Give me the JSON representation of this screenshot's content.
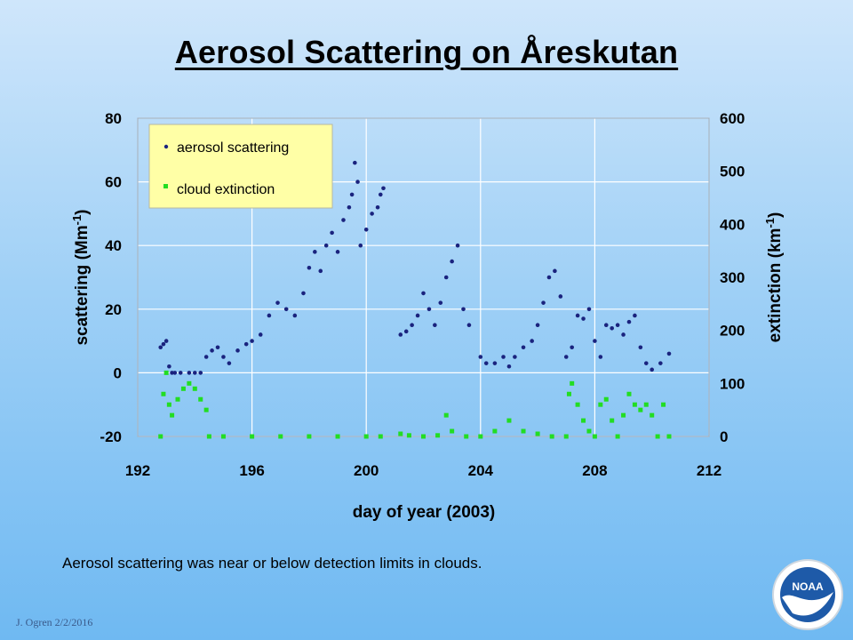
{
  "slide": {
    "title": "Aerosol Scattering on Åreskutan",
    "caption": "Aerosol scattering was near or below detection limits in clouds.",
    "footer": "J. Ogren  2/2/2016",
    "logo_text": "NOAA"
  },
  "colors": {
    "aerosol": "#1a237e",
    "cloud": "#22dd22",
    "legend_bg": "#ffffa6",
    "grid": "#ffffff"
  },
  "chart_data": {
    "type": "scatter",
    "xlabel": "day of year (2003)",
    "ylabel_left": "scattering (Mm",
    "ylabel_left_sup": "-1",
    "ylabel_left_close": ")",
    "ylabel_right": "extinction (km",
    "ylabel_right_sup": "-1",
    "ylabel_right_close": ")",
    "xlim": [
      192,
      212
    ],
    "xticks": [
      192,
      196,
      200,
      204,
      208,
      212
    ],
    "ylim_left": [
      -20,
      80
    ],
    "yticks_left": [
      -20,
      0,
      20,
      40,
      60,
      80
    ],
    "ylim_right": [
      0,
      600
    ],
    "yticks_right": [
      0,
      100,
      200,
      300,
      400,
      500,
      600
    ],
    "grid": true,
    "legend_position": "top-left",
    "series": [
      {
        "name": "aerosol scattering",
        "axis": "left",
        "x": [
          192.8,
          192.9,
          193.0,
          193.1,
          193.2,
          193.3,
          193.5,
          193.8,
          194.0,
          194.2,
          194.4,
          194.6,
          194.8,
          195.0,
          195.2,
          195.5,
          195.8,
          196.0,
          196.3,
          196.6,
          196.9,
          197.2,
          197.5,
          197.8,
          198.0,
          198.2,
          198.4,
          198.6,
          198.8,
          199.0,
          199.2,
          199.4,
          199.5,
          199.6,
          199.7,
          199.8,
          200.0,
          200.2,
          200.4,
          200.5,
          200.6,
          201.2,
          201.4,
          201.6,
          201.8,
          202.0,
          202.2,
          202.4,
          202.6,
          202.8,
          203.0,
          203.2,
          203.4,
          203.6,
          204.0,
          204.2,
          204.5,
          204.8,
          205.0,
          205.2,
          205.5,
          205.8,
          206.0,
          206.2,
          206.4,
          206.6,
          206.8,
          207.0,
          207.2,
          207.4,
          207.6,
          207.8,
          208.0,
          208.2,
          208.4,
          208.6,
          208.8,
          209.0,
          209.2,
          209.4,
          209.6,
          209.8,
          210.0,
          210.3,
          210.6
        ],
        "y": [
          8,
          9,
          10,
          2,
          0,
          0,
          0,
          0,
          0,
          0,
          5,
          7,
          8,
          5,
          3,
          7,
          9,
          10,
          12,
          18,
          22,
          20,
          18,
          25,
          33,
          38,
          32,
          40,
          44,
          38,
          48,
          52,
          56,
          66,
          60,
          40,
          45,
          50,
          52,
          56,
          58,
          12,
          13,
          15,
          18,
          25,
          20,
          15,
          22,
          30,
          35,
          40,
          20,
          15,
          5,
          3,
          3,
          5,
          2,
          5,
          8,
          10,
          15,
          22,
          30,
          32,
          24,
          5,
          8,
          18,
          17,
          20,
          10,
          5,
          15,
          14,
          15,
          12,
          16,
          18,
          8,
          3,
          1,
          3,
          6
        ]
      },
      {
        "name": "cloud extinction",
        "axis": "right",
        "x": [
          192.8,
          192.9,
          193.0,
          193.1,
          193.2,
          193.4,
          193.6,
          193.8,
          194.0,
          194.2,
          194.4,
          194.5,
          195,
          196,
          197,
          198,
          199,
          200,
          200.5,
          201.2,
          201.5,
          202,
          202.5,
          202.8,
          203,
          203.5,
          204,
          204.5,
          205,
          205.5,
          206,
          206.5,
          207.0,
          207.1,
          207.2,
          207.4,
          207.6,
          207.8,
          208.0,
          208.2,
          208.4,
          208.6,
          208.8,
          209.0,
          209.2,
          209.4,
          209.6,
          209.8,
          210.0,
          210.2,
          210.4,
          210.6
        ],
        "y": [
          0,
          80,
          120,
          60,
          40,
          70,
          90,
          100,
          90,
          70,
          50,
          0,
          0,
          0,
          0,
          0,
          0,
          0,
          0,
          5,
          2,
          0,
          2,
          40,
          10,
          0,
          0,
          10,
          30,
          10,
          5,
          0,
          0,
          80,
          100,
          60,
          30,
          10,
          0,
          60,
          70,
          30,
          0,
          40,
          80,
          60,
          50,
          60,
          40,
          0,
          60,
          0
        ]
      }
    ]
  }
}
